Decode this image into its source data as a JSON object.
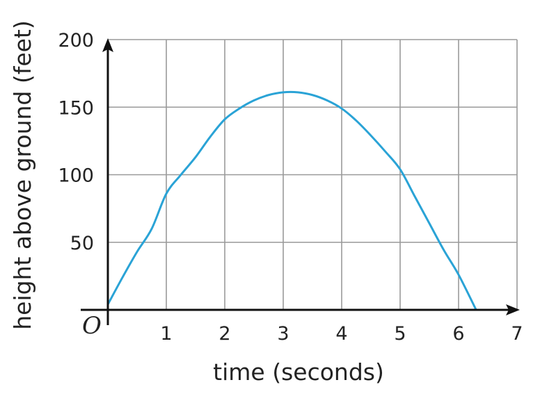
{
  "chart_data": {
    "type": "line",
    "title": "",
    "xlabel": "time (seconds)",
    "ylabel": "height above ground (feet)",
    "origin_label": "O",
    "xlim": [
      0,
      7
    ],
    "ylim": [
      0,
      200
    ],
    "x_ticks": [
      1,
      2,
      3,
      4,
      5,
      6,
      7
    ],
    "y_ticks": [
      50,
      100,
      150,
      200
    ],
    "grid": true,
    "series": [
      {
        "color": "#2aa3d6",
        "x": [
          0,
          0.25,
          0.5,
          0.75,
          1,
          1.25,
          1.5,
          1.75,
          2,
          2.25,
          2.5,
          2.75,
          3,
          3.25,
          3.5,
          3.75,
          4,
          4.25,
          4.5,
          4.75,
          5,
          5.25,
          5.5,
          5.75,
          6,
          6.3
        ],
        "y": [
          4,
          24,
          43,
          60,
          86,
          100,
          113,
          128,
          141,
          149,
          155,
          159,
          161,
          161,
          159,
          155,
          149,
          140,
          129,
          117,
          104,
          84,
          64,
          44,
          26,
          0
        ]
      }
    ],
    "axis_color": "#111111",
    "grid_color": "#9a9a9a"
  }
}
